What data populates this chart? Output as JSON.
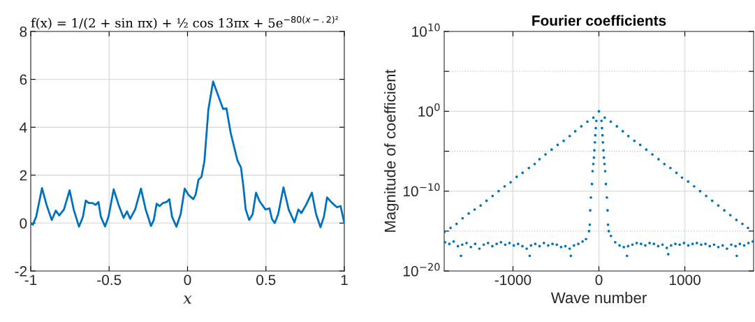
{
  "chart_data": [
    {
      "type": "line",
      "title": "f(x) = 1/(2 + sin πx) + ½ cos 13πx + 5e$^{−80(x−.2)²}$",
      "xlabel": "x",
      "x": [
        -1,
        -0.987,
        -0.965,
        -0.928,
        -0.899,
        -0.866,
        -0.84,
        -0.818,
        -0.788,
        -0.752,
        -0.726,
        -0.692,
        -0.667,
        -0.649,
        -0.63,
        -0.608,
        -0.586,
        -0.568,
        -0.553,
        -0.526,
        -0.504,
        -0.471,
        -0.437,
        -0.408,
        -0.386,
        -0.366,
        -0.334,
        -0.297,
        -0.267,
        -0.233,
        -0.215,
        -0.197,
        -0.178,
        -0.156,
        -0.133,
        -0.116,
        -0.099,
        -0.071,
        -0.044,
        -0.018,
        0.007,
        0.037,
        0.052,
        0.07,
        0.089,
        0.108,
        0.133,
        0.163,
        0.193,
        0.227,
        0.248,
        0.275,
        0.319,
        0.341,
        0.356,
        0.371,
        0.393,
        0.415,
        0.437,
        0.46,
        0.497,
        0.523,
        0.538,
        0.556,
        0.578,
        0.612,
        0.645,
        0.682,
        0.707,
        0.726,
        0.756,
        0.793,
        0.82,
        0.848,
        0.87,
        0.89,
        0.919,
        0.953,
        0.976,
        1
      ],
      "series": [
        {
          "color": "#0072bd",
          "values": [
            0,
            -0.07,
            0.27,
            1.46,
            0.76,
            0.13,
            0.52,
            0.32,
            0.57,
            1.37,
            0.57,
            -0.15,
            0.27,
            0.94,
            0.84,
            0.84,
            0.76,
            0.88,
            0.27,
            -0.14,
            0.27,
            1.41,
            0.71,
            0.22,
            0.49,
            0.18,
            0.57,
            1.44,
            0.57,
            -0.12,
            0.13,
            0.81,
            0.71,
            0.84,
            0.88,
            1.0,
            0.27,
            -0.15,
            0.37,
            1.44,
            1.17,
            1.0,
            1.2,
            1.81,
            1.93,
            2.6,
            4.74,
            5.91,
            5.37,
            4.76,
            4.79,
            3.77,
            2.6,
            2.32,
            1.54,
            0.57,
            0.13,
            0.37,
            1.27,
            0.91,
            0.57,
            0.61,
            0.18,
            0.0,
            0.37,
            1.49,
            0.57,
            0.03,
            0.57,
            0.42,
            0.76,
            1.27,
            0.37,
            -0.17,
            0.27,
            1.07,
            0.86,
            0.66,
            0.71,
            0
          ]
        }
      ],
      "xlim": [
        -1,
        1
      ],
      "ylim": [
        -2,
        8
      ],
      "xticks": [
        -1,
        -0.5,
        0,
        0.5,
        1
      ],
      "yticks": [
        -2,
        0,
        2,
        4,
        6,
        8
      ],
      "grid": true,
      "marker": "none",
      "line_style": "solid"
    },
    {
      "type": "scatter",
      "title": "Fourier coefficients",
      "xlabel": "Wave number",
      "ylabel": "Magnitude of coefficient",
      "x": [
        -1796,
        -1726,
        -1656,
        -1586,
        -1515,
        -1446,
        -1376,
        -1307,
        -1237,
        -1167,
        -1097,
        -1027,
        -957,
        -888,
        -815,
        -747,
        -691,
        -621,
        -550,
        -480,
        -410,
        -340,
        -275,
        -205,
        -134,
        -64,
        68,
        138,
        209,
        278,
        343,
        413,
        481,
        551,
        622,
        694,
        762,
        832,
        902,
        967,
        1038,
        1108,
        1178,
        1248,
        1318,
        1389,
        1459,
        1529,
        1600,
        1670,
        1734,
        0,
        -30,
        -36,
        -42,
        -47,
        -53,
        -58,
        -65,
        -73,
        -81,
        -93,
        -101,
        -106,
        -115,
        30,
        36,
        42,
        47,
        53,
        58,
        65,
        73,
        81,
        93,
        101,
        106,
        115,
        -1790,
        -1740,
        -1690,
        -1640,
        -1605,
        -1590,
        -1540,
        -1490,
        -1440,
        -1390,
        -1340,
        -1290,
        -1240,
        -1190,
        -1140,
        -1090,
        -1040,
        -990,
        -940,
        -890,
        -840,
        -805,
        -790,
        -740,
        -690,
        -640,
        -590,
        -540,
        -490,
        -440,
        -390,
        -340,
        -327,
        -290,
        -240,
        -190,
        -150,
        140,
        190,
        240,
        290,
        327,
        340,
        390,
        440,
        490,
        540,
        590,
        640,
        690,
        740,
        790,
        807,
        840,
        890,
        940,
        990,
        1040,
        1090,
        1140,
        1190,
        1240,
        1290,
        1340,
        1390,
        1440,
        1490,
        1540,
        1590,
        1604,
        1640,
        1690,
        1740,
        1790
      ],
      "series": [
        {
          "color": "#0072bd",
          "values": [
            7.9e-16,
            2.5e-15,
            7.9e-15,
            4e-14,
            1.6e-13,
            5e-13,
            1.6e-12,
            6.3e-12,
            2.5e-11,
            1e-10,
            4e-10,
            1.3e-09,
            6.3e-09,
            2e-08,
            7.9e-08,
            2.5e-07,
            1e-06,
            4e-06,
            1.6e-05,
            6.3e-05,
            0.0002,
            0.00079,
            0.0032,
            0.013,
            0.05,
            0.16,
            0.16,
            0.05,
            0.013,
            0.0032,
            0.00079,
            0.0002,
            6.3e-05,
            1.6e-05,
            4e-06,
            1e-06,
            2.5e-07,
            7.9e-08,
            2e-08,
            5e-09,
            1.6e-09,
            4e-10,
            1e-10,
            2.5e-11,
            6.3e-12,
            1.6e-12,
            4e-13,
            1e-13,
            2.5e-14,
            7.9e-15,
            2.5e-15,
            1.0,
            0.063,
            0.0079,
            0.001,
            0.00013,
            1.3e-05,
            1.6e-06,
            2.5e-07,
            3.2e-08,
            7.9e-10,
            1.6e-11,
            4e-13,
            6.3e-15,
            1e-15,
            0.063,
            0.0079,
            0.001,
            0.00013,
            1.3e-05,
            1.6e-06,
            2.5e-07,
            3.2e-08,
            7.9e-10,
            1.6e-11,
            4e-13,
            6.3e-15,
            1e-15,
            4e-17,
            2.5e-17,
            5e-17,
            1.3e-17,
            7.9e-19,
            2e-17,
            3.2e-17,
            1e-17,
            2.5e-17,
            6.3e-18,
            2e-17,
            3.2e-17,
            1.3e-17,
            2.5e-17,
            4e-17,
            2e-17,
            3.2e-17,
            1.6e-17,
            2.5e-17,
            1.3e-17,
            6.3e-18,
            7.9e-19,
            1.6e-17,
            2.5e-17,
            1.3e-17,
            3.2e-17,
            1.6e-17,
            2.5e-17,
            2e-17,
            1e-17,
            1.3e-17,
            6.3e-18,
            7.9e-19,
            1.6e-17,
            2.5e-17,
            5e-17,
            1e-16,
            2.5e-16,
            4e-17,
            1.6e-17,
            1e-17,
            7.9e-19,
            1.3e-17,
            2e-17,
            3.2e-17,
            2.5e-17,
            1.6e-17,
            3.2e-17,
            2.5e-17,
            1.3e-17,
            2e-17,
            7.9e-18,
            1.3e-18,
            1.6e-17,
            2.5e-17,
            2e-17,
            3.2e-17,
            1.6e-17,
            2.5e-17,
            3.2e-17,
            2e-17,
            2.5e-17,
            1.3e-17,
            2e-17,
            1e-17,
            1.6e-17,
            6.3e-18,
            2e-17,
            1.3e-17,
            7.9e-19,
            2.5e-17,
            1.6e-17,
            3.2e-17,
            5e-17
          ]
        }
      ],
      "xlim": [
        -1800,
        1800
      ],
      "ylim": [
        1e-20,
        10000000000.0
      ],
      "xticks": [
        -1000,
        0,
        1000
      ],
      "yticks": [
        {
          "value": 1e-20,
          "label": "10$^{−20}$"
        },
        {
          "value": 1e-15,
          "label": null
        },
        {
          "value": 1e-10,
          "label": "10$^{−10}$"
        },
        {
          "value": 1e-05,
          "label": null
        },
        {
          "value": 1,
          "label": "10$^{0}$"
        },
        {
          "value": 100000.0,
          "label": null
        },
        {
          "value": 10000000000.0,
          "label": "10$^{10}$"
        }
      ],
      "log": "y",
      "grid": true,
      "marker": "circle"
    }
  ]
}
